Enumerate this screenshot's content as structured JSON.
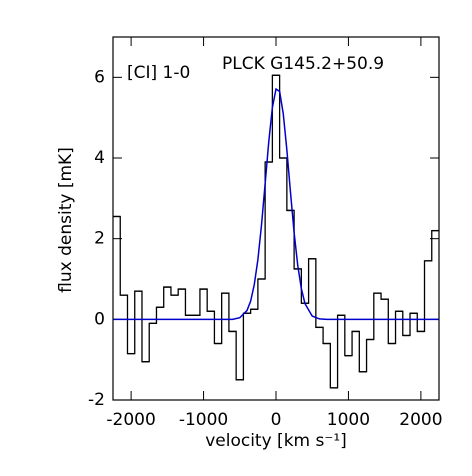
{
  "chart_data": {
    "type": "histogram",
    "xlabel": "velocity [km s⁻¹]",
    "ylabel": "flux density [mK]",
    "annotations": [
      "[CI] 1-0",
      "PLCK G145.2+50.9"
    ],
    "xlim": [
      -2250,
      2250
    ],
    "ylim": [
      -2,
      7
    ],
    "xticks": [
      -2000,
      -1000,
      0,
      1000,
      2000
    ],
    "yticks": [
      -2,
      0,
      2,
      4,
      6
    ],
    "series": [
      {
        "type": "step",
        "color": "#000000",
        "bins": [
          -2250,
          -2150,
          -2050,
          -1950,
          -1850,
          -1750,
          -1650,
          -1550,
          -1450,
          -1350,
          -1250,
          -1150,
          -1050,
          -950,
          -850,
          -750,
          -650,
          -550,
          -450,
          -350,
          -250,
          -150,
          -50,
          50,
          150,
          250,
          350,
          450,
          550,
          650,
          750,
          850,
          950,
          1050,
          1150,
          1250,
          1350,
          1450,
          1550,
          1650,
          1750,
          1850,
          1950,
          2050,
          2150,
          2250
        ],
        "values": [
          2.55,
          0.6,
          -0.85,
          0.7,
          -1.05,
          -0.1,
          0.3,
          0.8,
          0.6,
          0.75,
          0.1,
          0.1,
          0.75,
          0.2,
          -0.6,
          0.65,
          -0.3,
          -1.5,
          0.15,
          0.25,
          1.0,
          3.9,
          6.05,
          4.0,
          2.7,
          1.25,
          0.4,
          1.5,
          -0.2,
          -0.6,
          -1.7,
          0.1,
          -0.9,
          -0.3,
          -1.3,
          -0.5,
          0.65,
          0.5,
          -0.6,
          0.2,
          -0.4,
          0.15,
          -0.3,
          1.45,
          2.2
        ]
      },
      {
        "type": "line",
        "color": "#0000cc",
        "x": [
          -2250,
          -1000,
          -800,
          -700,
          -600,
          -500,
          -400,
          -350,
          -300,
          -250,
          -200,
          -150,
          -100,
          -50,
          0,
          50,
          100,
          150,
          200,
          250,
          300,
          350,
          400,
          500,
          600,
          700,
          800,
          1000,
          2250
        ],
        "values": [
          0,
          0,
          0,
          0,
          0,
          0.04,
          0.22,
          0.45,
          0.86,
          1.48,
          2.34,
          3.36,
          4.4,
          5.25,
          5.71,
          5.65,
          5.1,
          4.2,
          3.15,
          2.15,
          1.34,
          0.76,
          0.39,
          0.08,
          0.01,
          0,
          0,
          0,
          0
        ]
      }
    ]
  }
}
